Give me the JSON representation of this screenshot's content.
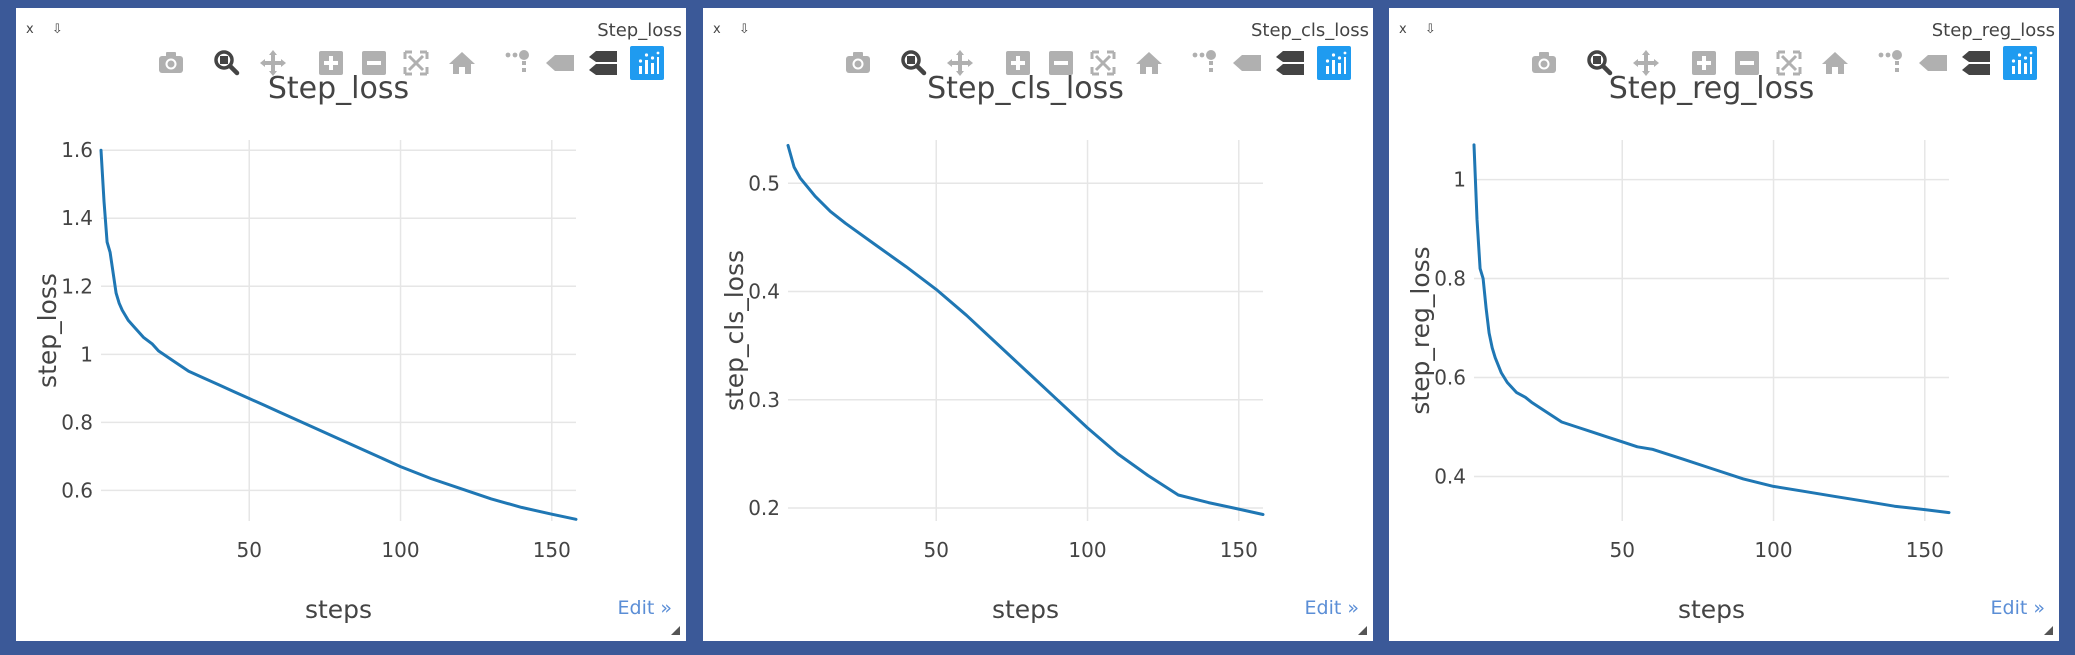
{
  "panes": [
    {
      "window_title": "Step_loss",
      "edit_label": "Edit »",
      "controls": [
        "x",
        "⇩"
      ],
      "toolbar_icons": [
        "camera-icon",
        "zoom-icon",
        "pan-icon",
        "zoom-in-icon",
        "zoom-out-icon",
        "autoscale-icon",
        "home-icon",
        "spike-lines-icon",
        "hover-closest-icon",
        "hover-compare-icon",
        "plotly-logo-icon"
      ],
      "chart_data": {
        "type": "line",
        "title": "Step_loss",
        "xlabel": "steps",
        "ylabel": "step_loss",
        "xlim": [
          1,
          158
        ],
        "ylim": [
          0.51,
          1.63
        ],
        "xticks": [
          50,
          100,
          150
        ],
        "yticks": [
          0.6,
          0.8,
          1,
          1.2,
          1.4,
          1.6
        ],
        "ytick_labels": [
          "0.6",
          "0.8",
          "1",
          "1.2",
          "1.4",
          "1.6"
        ],
        "grid": true,
        "series": [
          {
            "color": "#1f77b4",
            "x": [
              1,
              2,
              3,
              4,
              5,
              6,
              7,
              8,
              10,
              12,
              15,
              18,
              20,
              25,
              30,
              35,
              40,
              45,
              50,
              55,
              60,
              70,
              80,
              90,
              100,
              110,
              120,
              130,
              140,
              150,
              158
            ],
            "y": [
              1.6,
              1.45,
              1.33,
              1.3,
              1.24,
              1.18,
              1.15,
              1.13,
              1.1,
              1.08,
              1.05,
              1.03,
              1.01,
              0.98,
              0.95,
              0.93,
              0.91,
              0.89,
              0.87,
              0.85,
              0.83,
              0.79,
              0.75,
              0.71,
              0.67,
              0.635,
              0.605,
              0.575,
              0.55,
              0.53,
              0.515
            ]
          }
        ]
      }
    },
    {
      "window_title": "Step_cls_loss",
      "edit_label": "Edit »",
      "controls": [
        "x",
        "⇩"
      ],
      "toolbar_icons": [
        "camera-icon",
        "zoom-icon",
        "pan-icon",
        "zoom-in-icon",
        "zoom-out-icon",
        "autoscale-icon",
        "home-icon",
        "spike-lines-icon",
        "hover-closest-icon",
        "hover-compare-icon",
        "plotly-logo-icon"
      ],
      "chart_data": {
        "type": "line",
        "title": "Step_cls_loss",
        "xlabel": "steps",
        "ylabel": "step_cls_loss",
        "xlim": [
          1,
          158
        ],
        "ylim": [
          0.188,
          0.54
        ],
        "xticks": [
          50,
          100,
          150
        ],
        "yticks": [
          0.2,
          0.3,
          0.4,
          0.5
        ],
        "ytick_labels": [
          "0.2",
          "0.3",
          "0.4",
          "0.5"
        ],
        "grid": true,
        "series": [
          {
            "color": "#1f77b4",
            "x": [
              1,
              3,
              5,
              10,
              15,
              20,
              30,
              40,
              50,
              60,
              70,
              80,
              90,
              100,
              110,
              120,
              130,
              140,
              150,
              158
            ],
            "y": [
              0.535,
              0.515,
              0.505,
              0.488,
              0.474,
              0.463,
              0.443,
              0.423,
              0.402,
              0.378,
              0.352,
              0.326,
              0.3,
              0.274,
              0.25,
              0.23,
              0.212,
              0.205,
              0.199,
              0.194
            ]
          }
        ]
      }
    },
    {
      "window_title": "Step_reg_loss",
      "edit_label": "Edit »",
      "controls": [
        "x",
        "⇩"
      ],
      "toolbar_icons": [
        "camera-icon",
        "zoom-icon",
        "pan-icon",
        "zoom-in-icon",
        "zoom-out-icon",
        "autoscale-icon",
        "home-icon",
        "spike-lines-icon",
        "hover-closest-icon",
        "hover-compare-icon",
        "plotly-logo-icon"
      ],
      "chart_data": {
        "type": "line",
        "title": "Step_reg_loss",
        "xlabel": "steps",
        "ylabel": "step_reg_loss",
        "xlim": [
          1,
          158
        ],
        "ylim": [
          0.31,
          1.08
        ],
        "xticks": [
          50,
          100,
          150
        ],
        "yticks": [
          0.4,
          0.6,
          0.8,
          1
        ],
        "ytick_labels": [
          "0.4",
          "0.6",
          "0.8",
          "1"
        ],
        "grid": true,
        "series": [
          {
            "color": "#1f77b4",
            "x": [
              1,
              2,
              3,
              4,
              5,
              6,
              7,
              8,
              10,
              12,
              15,
              18,
              20,
              25,
              30,
              35,
              40,
              45,
              50,
              55,
              60,
              70,
              80,
              90,
              100,
              110,
              120,
              130,
              140,
              150,
              158
            ],
            "y": [
              1.07,
              0.92,
              0.82,
              0.8,
              0.74,
              0.69,
              0.66,
              0.64,
              0.61,
              0.59,
              0.57,
              0.56,
              0.55,
              0.53,
              0.51,
              0.5,
              0.49,
              0.48,
              0.47,
              0.46,
              0.455,
              0.435,
              0.415,
              0.395,
              0.38,
              0.37,
              0.36,
              0.35,
              0.34,
              0.333,
              0.327
            ]
          }
        ]
      }
    }
  ]
}
